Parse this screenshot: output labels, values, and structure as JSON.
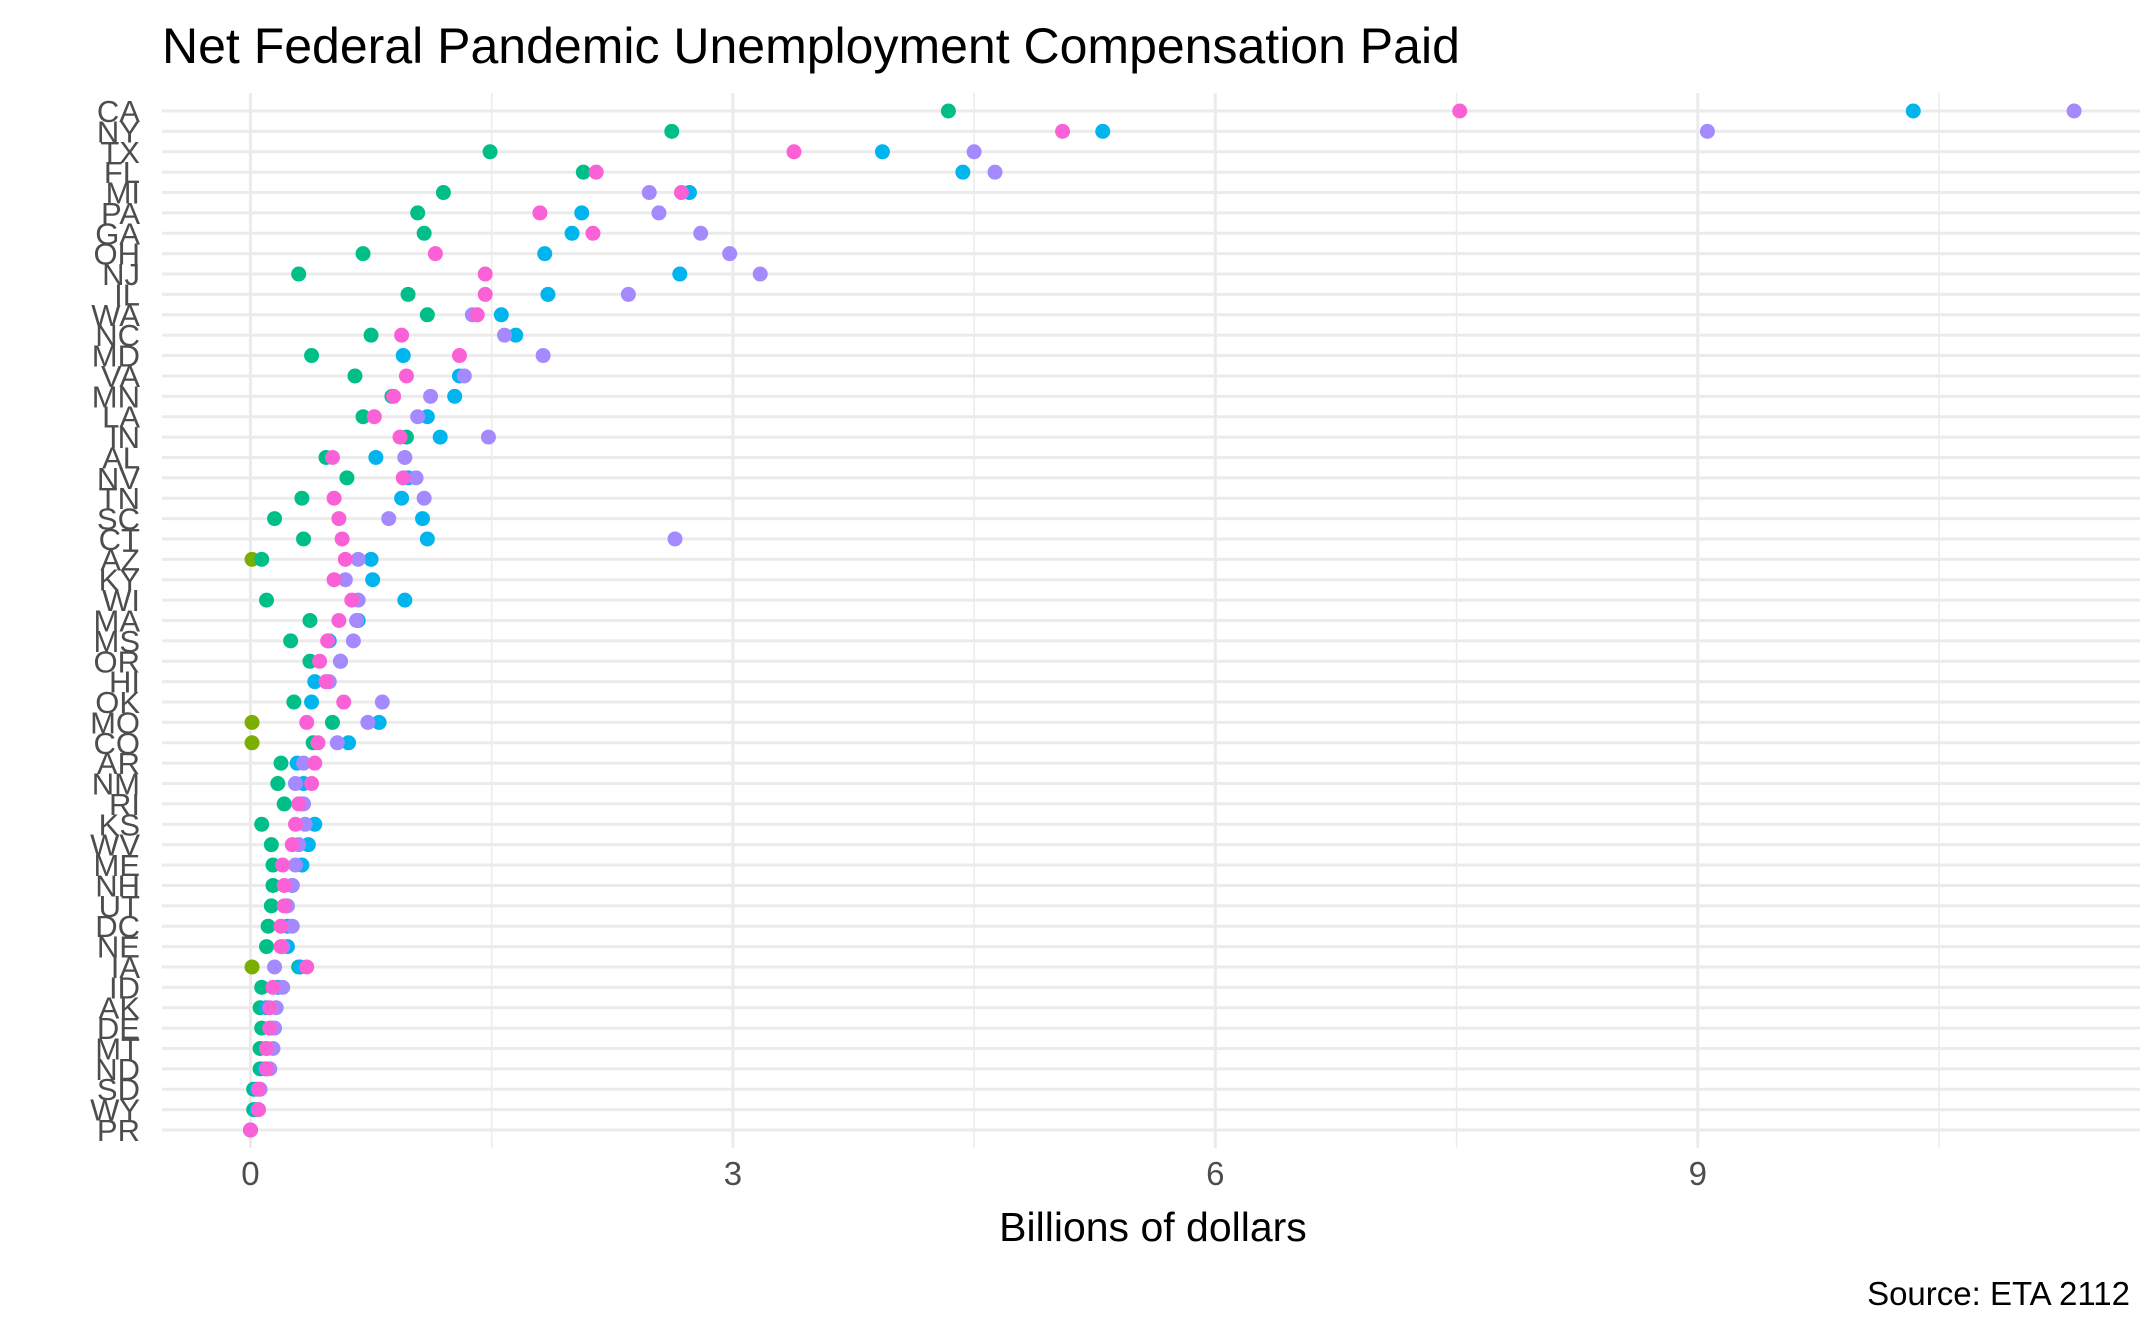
{
  "chart_data": {
    "type": "scatter",
    "title": "Net Federal Pandemic Unemployment Compensation Paid",
    "xlabel": "Billions of dollars",
    "ylabel": "",
    "caption": "Source: ETA 2112",
    "xlim": [
      -0.55,
      11.75
    ],
    "xticks": [
      0,
      3,
      6,
      9
    ],
    "grid": true,
    "legend": "none",
    "categories": [
      "CA",
      "NY",
      "TX",
      "FL",
      "MI",
      "PA",
      "GA",
      "OH",
      "NJ",
      "IL",
      "WA",
      "NC",
      "MD",
      "VA",
      "MN",
      "LA",
      "IN",
      "AL",
      "NV",
      "TN",
      "SC",
      "CT",
      "AZ",
      "KY",
      "WI",
      "MA",
      "MS",
      "OR",
      "HI",
      "OK",
      "MO",
      "CO",
      "AR",
      "NM",
      "RI",
      "KS",
      "WV",
      "ME",
      "NH",
      "UT",
      "DC",
      "NE",
      "IA",
      "ID",
      "AK",
      "DE",
      "MT",
      "ND",
      "SD",
      "WY",
      "PR"
    ],
    "series": [
      {
        "color": "#7CAE00",
        "values": [
          null,
          null,
          null,
          null,
          null,
          null,
          null,
          null,
          null,
          null,
          null,
          null,
          null,
          null,
          null,
          null,
          null,
          null,
          null,
          null,
          null,
          null,
          0.01,
          null,
          null,
          null,
          null,
          null,
          null,
          null,
          0.01,
          0.01,
          null,
          null,
          null,
          null,
          null,
          null,
          null,
          null,
          null,
          null,
          0.01,
          null,
          null,
          null,
          null,
          null,
          null,
          null,
          null
        ]
      },
      {
        "color": "#00BE87",
        "values": [
          4.34,
          2.62,
          1.49,
          2.07,
          1.2,
          1.04,
          1.08,
          0.7,
          0.3,
          0.98,
          1.1,
          0.75,
          0.38,
          0.65,
          0.88,
          0.7,
          0.97,
          0.47,
          0.6,
          0.32,
          0.15,
          0.33,
          0.07,
          null,
          0.1,
          0.37,
          0.25,
          0.37,
          null,
          0.27,
          0.51,
          0.39,
          0.19,
          0.17,
          0.21,
          0.07,
          0.13,
          0.14,
          0.14,
          0.13,
          0.11,
          0.1,
          0.3,
          0.07,
          0.06,
          0.07,
          0.06,
          0.06,
          0.02,
          0.02,
          0
        ]
      },
      {
        "color": "#00B5EE",
        "values": [
          10.34,
          5.3,
          3.93,
          4.43,
          2.73,
          2.06,
          2.0,
          1.83,
          2.67,
          1.85,
          1.56,
          1.65,
          0.95,
          1.3,
          1.27,
          1.1,
          1.18,
          0.78,
          0.98,
          0.94,
          1.07,
          1.1,
          0.75,
          0.76,
          0.96,
          0.67,
          0.49,
          0.56,
          0.4,
          0.38,
          0.8,
          0.61,
          0.29,
          0.33,
          0.32,
          0.4,
          0.36,
          0.32,
          0.26,
          0.22,
          0.23,
          0.23,
          0.31,
          0.17,
          0.1,
          0.13,
          0.1,
          0.09,
          0.04,
          0.04,
          0
        ]
      },
      {
        "color": "#A58AFF",
        "values": [
          11.34,
          9.06,
          4.5,
          4.63,
          2.48,
          2.54,
          2.8,
          2.98,
          3.17,
          2.35,
          1.38,
          1.58,
          1.82,
          1.33,
          1.12,
          1.04,
          1.48,
          0.96,
          1.03,
          1.08,
          0.86,
          2.64,
          0.67,
          0.59,
          0.67,
          0.66,
          0.64,
          0.56,
          0.49,
          0.82,
          0.73,
          0.54,
          0.33,
          0.28,
          0.33,
          0.34,
          0.3,
          0.28,
          0.26,
          0.23,
          0.26,
          0.2,
          0.15,
          0.2,
          0.16,
          0.15,
          0.14,
          0.12,
          0.06,
          0.05,
          0
        ]
      },
      {
        "color": "#FB61D7",
        "values": [
          7.52,
          5.05,
          3.38,
          2.15,
          2.68,
          1.8,
          2.13,
          1.15,
          1.46,
          1.46,
          1.41,
          0.94,
          1.3,
          0.97,
          0.89,
          0.77,
          0.93,
          0.51,
          0.95,
          0.52,
          0.55,
          0.57,
          0.59,
          0.52,
          0.63,
          0.55,
          0.48,
          0.43,
          0.47,
          0.58,
          0.35,
          0.42,
          0.4,
          0.38,
          0.3,
          0.28,
          0.26,
          0.2,
          0.21,
          0.21,
          0.19,
          0.19,
          0.35,
          0.14,
          0.12,
          0.12,
          0.1,
          0.1,
          0.05,
          0.05,
          0
        ]
      }
    ]
  }
}
